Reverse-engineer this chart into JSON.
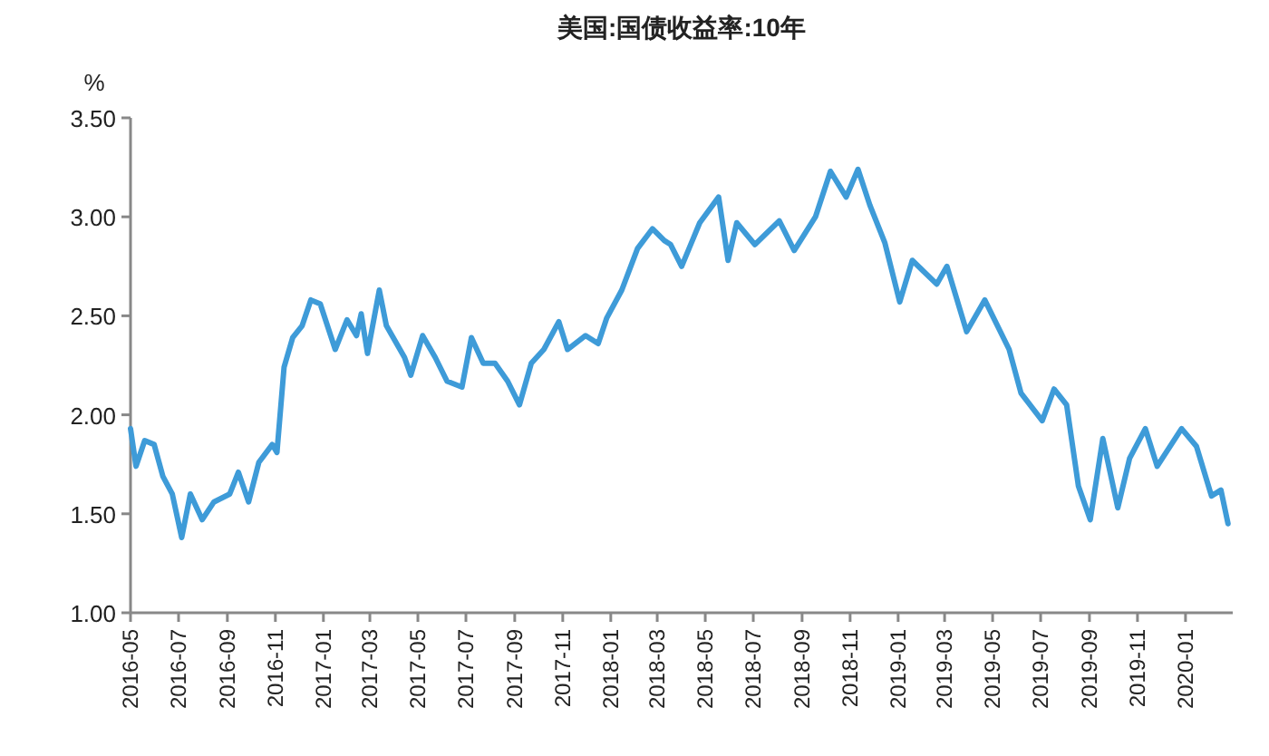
{
  "chart_data": {
    "type": "line",
    "title": "美国:国债收益率:10年",
    "ylabel": "%",
    "x": [
      "2016-05-01",
      "2016-05-08",
      "2016-05-19",
      "2016-05-31",
      "2016-06-11",
      "2016-06-23",
      "2016-07-05",
      "2016-07-16",
      "2016-07-31",
      "2016-08-15",
      "2016-09-04",
      "2016-09-15",
      "2016-09-28",
      "2016-10-11",
      "2016-10-28",
      "2016-11-03",
      "2016-11-12",
      "2016-11-23",
      "2016-12-05",
      "2016-12-16",
      "2016-12-28",
      "2017-01-16",
      "2017-01-31",
      "2017-02-12",
      "2017-02-18",
      "2017-02-26",
      "2017-03-13",
      "2017-03-22",
      "2017-04-14",
      "2017-04-22",
      "2017-05-07",
      "2017-05-23",
      "2017-06-07",
      "2017-06-26",
      "2017-07-08",
      "2017-07-23",
      "2017-08-07",
      "2017-08-23",
      "2017-09-07",
      "2017-09-22",
      "2017-10-08",
      "2017-10-27",
      "2017-11-07",
      "2017-11-30",
      "2017-12-16",
      "2017-12-27",
      "2018-01-15",
      "2018-02-04",
      "2018-02-23",
      "2018-03-10",
      "2018-03-18",
      "2018-04-01",
      "2018-04-24",
      "2018-05-18",
      "2018-05-30",
      "2018-06-10",
      "2018-07-03",
      "2018-08-03",
      "2018-08-22",
      "2018-09-18",
      "2018-10-07",
      "2018-10-27",
      "2018-11-11",
      "2018-11-26",
      "2018-12-15",
      "2019-01-03",
      "2019-01-19",
      "2019-02-19",
      "2019-03-04",
      "2019-03-29",
      "2019-04-21",
      "2019-05-22",
      "2019-06-06",
      "2019-07-03",
      "2019-07-18",
      "2019-08-03",
      "2019-08-18",
      "2019-09-02",
      "2019-09-18",
      "2019-10-07",
      "2019-10-22",
      "2019-11-11",
      "2019-11-26",
      "2019-12-27",
      "2020-01-15",
      "2020-02-03",
      "2020-02-15",
      "2020-02-24"
    ],
    "series": [
      {
        "color": "#3e9bd8",
        "values": [
          1.93,
          1.74,
          1.87,
          1.85,
          1.69,
          1.6,
          1.38,
          1.6,
          1.47,
          1.56,
          1.6,
          1.71,
          1.56,
          1.76,
          1.85,
          1.81,
          2.24,
          2.39,
          2.45,
          2.58,
          2.56,
          2.33,
          2.48,
          2.4,
          2.51,
          2.31,
          2.63,
          2.45,
          2.29,
          2.2,
          2.4,
          2.29,
          2.17,
          2.14,
          2.39,
          2.26,
          2.26,
          2.17,
          2.05,
          2.26,
          2.33,
          2.47,
          2.33,
          2.4,
          2.36,
          2.49,
          2.63,
          2.84,
          2.94,
          2.88,
          2.86,
          2.75,
          2.97,
          3.1,
          2.78,
          2.97,
          2.86,
          2.98,
          2.83,
          3.0,
          3.23,
          3.1,
          3.24,
          3.06,
          2.87,
          2.57,
          2.78,
          2.66,
          2.75,
          2.42,
          2.58,
          2.33,
          2.11,
          1.97,
          2.13,
          2.05,
          1.64,
          1.47,
          1.88,
          1.53,
          1.78,
          1.93,
          1.74,
          1.93,
          1.84,
          1.59,
          1.62,
          1.45
        ]
      }
    ],
    "xlim": [
      "2016-05-01",
      "2020-03-01"
    ],
    "xticks": [
      "2016-05",
      "2016-07",
      "2016-09",
      "2016-11",
      "2017-01",
      "2017-03",
      "2017-05",
      "2017-07",
      "2017-09",
      "2017-11",
      "2018-01",
      "2018-03",
      "2018-05",
      "2018-07",
      "2018-09",
      "2018-11",
      "2019-01",
      "2019-03",
      "2019-05",
      "2019-07",
      "2019-09",
      "2019-11",
      "2020-01"
    ],
    "ylim": [
      1,
      3.5
    ],
    "yticks": [
      {
        "value": 1,
        "label": "1.00"
      },
      {
        "value": 1.5,
        "label": "1.50"
      },
      {
        "value": 2,
        "label": "2.00"
      },
      {
        "value": 2.5,
        "label": "2.50"
      },
      {
        "value": 3,
        "label": "3.00"
      },
      {
        "value": 3.5,
        "label": "3.50"
      }
    ],
    "grid": false,
    "marker": "none",
    "line_style": "solid"
  }
}
